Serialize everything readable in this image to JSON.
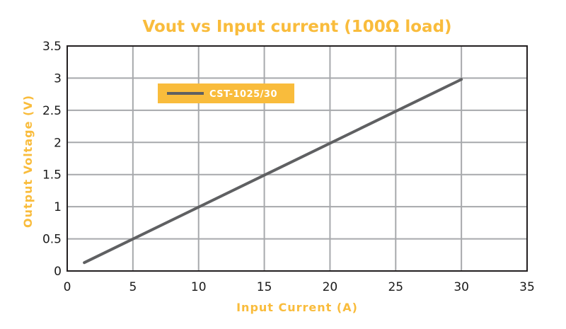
{
  "colors": {
    "accent": "#f9bc3c",
    "series": "#5f6062",
    "grid": "#a7a9ac",
    "frame": "#231f20"
  },
  "chart_data": {
    "type": "line",
    "title": "Vout vs Input current (100Ω load)",
    "xlabel": "Input Current (A)",
    "ylabel": "Output Voltage (V)",
    "xlim": [
      0,
      35
    ],
    "ylim": [
      0,
      3.5
    ],
    "xticks": [
      "0",
      "5",
      "10",
      "15",
      "20",
      "25",
      "30",
      "35"
    ],
    "yticks": [
      "0",
      "0.5",
      "1",
      "1.5",
      "2",
      "2.5",
      "3",
      "3.5"
    ],
    "grid": true,
    "legend_position": "top-left",
    "series": [
      {
        "name": "CST-1025/30",
        "x": [
          1.3,
          30
        ],
        "y": [
          0.13,
          2.98
        ]
      }
    ]
  }
}
